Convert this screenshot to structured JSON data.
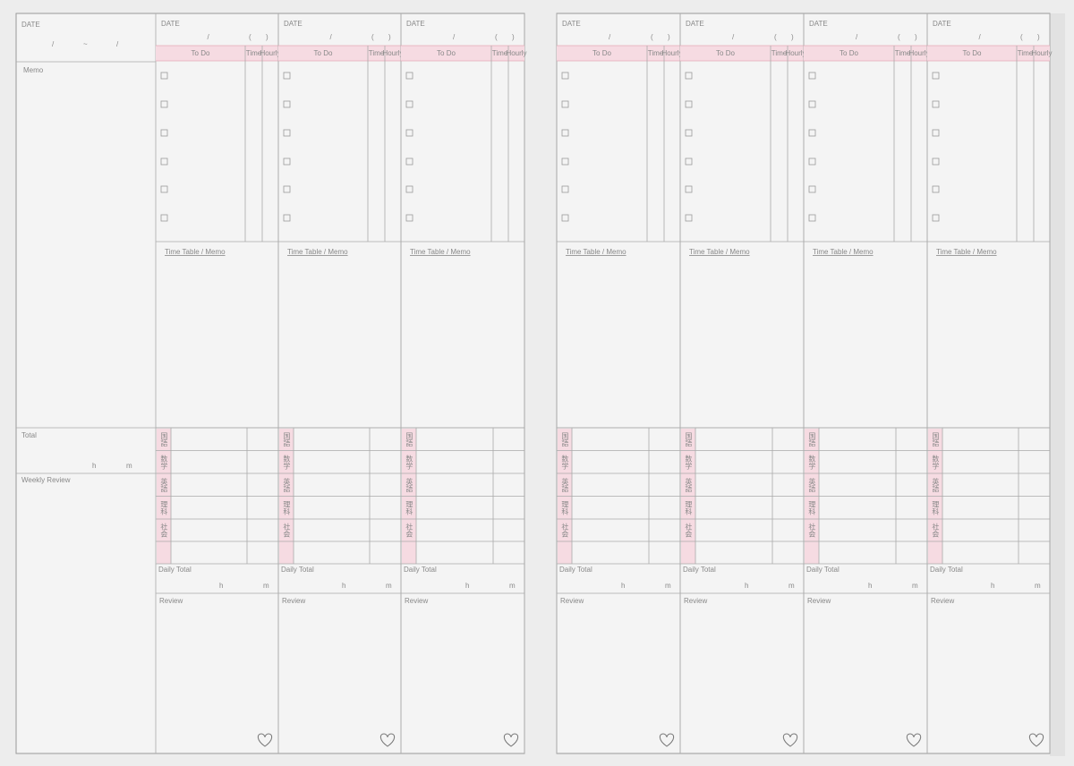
{
  "weekly": {
    "date_label": "DATE",
    "slash": "/",
    "tilde": "~",
    "memo": "Memo",
    "total": "Total",
    "hour": "h",
    "minute": "m",
    "review": "Weekly Review"
  },
  "day": {
    "date_label": "DATE",
    "slash": "/",
    "paren_open": "(",
    "paren_close": ")",
    "todo": "To Do",
    "time": "Time",
    "hourly": "Hourly",
    "timetable": "Time Table / Memo",
    "subjects": [
      "国語",
      "数学",
      "英語",
      "理科",
      "社会"
    ],
    "daily_total": "Daily Total",
    "hour": "h",
    "minute": "m",
    "review": "Review"
  }
}
